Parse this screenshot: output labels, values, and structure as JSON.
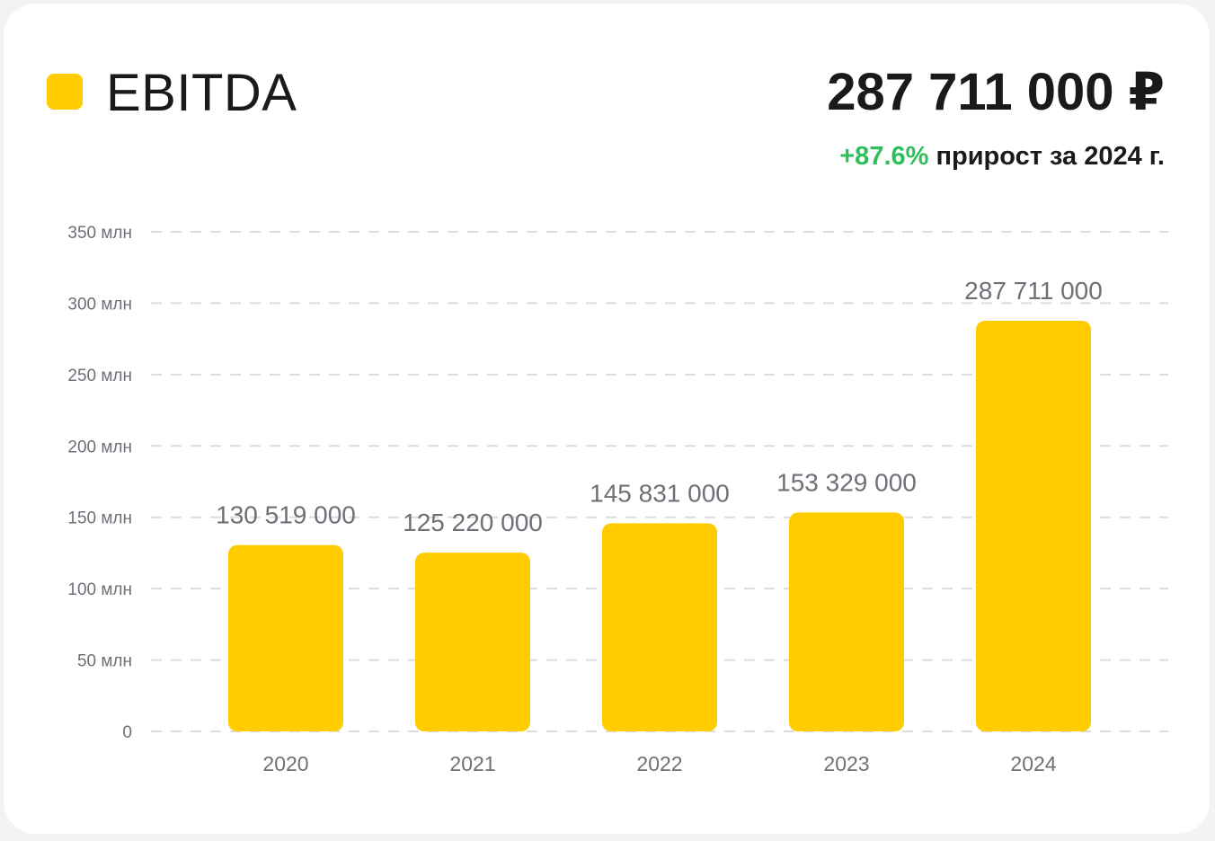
{
  "header": {
    "series_label": "EBITDA",
    "total_value": "287 711 000 ₽",
    "growth_percent": "+87.6%",
    "growth_text": " прирост за 2024 г."
  },
  "colors": {
    "bar": "#ffcc00",
    "growth": "#2fbf5a",
    "grid": "#dcdcde",
    "axis_text": "#6f6f78"
  },
  "chart_data": {
    "type": "bar",
    "categories": [
      "2020",
      "2021",
      "2022",
      "2023",
      "2024"
    ],
    "series": [
      {
        "name": "EBITDA",
        "values": [
          130519000,
          125220000,
          145831000,
          153329000,
          287711000
        ],
        "labels": [
          "130 519 000",
          "125 220 000",
          "145 831 000",
          "153 329 000",
          "287 711 000"
        ]
      }
    ],
    "ylim": [
      0,
      350000000
    ],
    "yticks": [
      0,
      50000000,
      100000000,
      150000000,
      200000000,
      250000000,
      300000000,
      350000000
    ],
    "ytick_labels": [
      "0",
      "50 млн",
      "100 млн",
      "150 млн",
      "200 млн",
      "250 млн",
      "300 млн",
      "350 млн"
    ],
    "grid": true,
    "legend": "top-left"
  }
}
